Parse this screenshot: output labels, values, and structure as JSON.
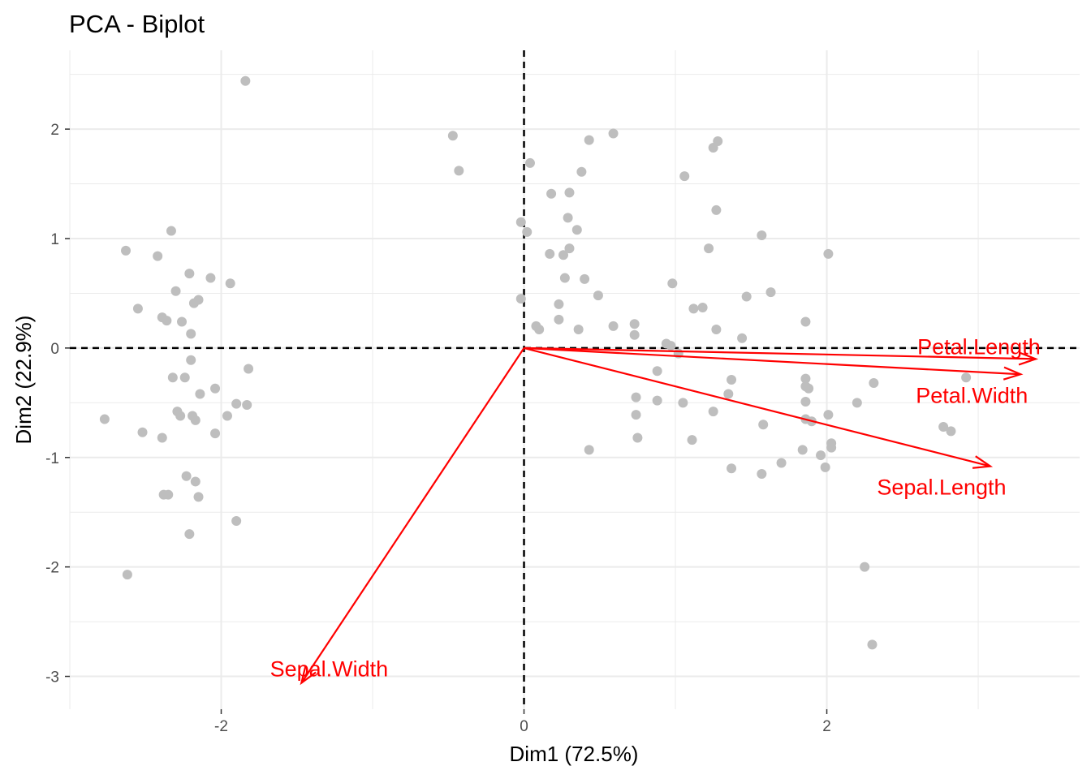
{
  "chart_data": {
    "type": "scatter",
    "title": "PCA - Biplot",
    "xlabel": "Dim1 (72.5%)",
    "ylabel": "Dim2 (22.9%)",
    "xlim": [
      -3.0,
      3.67
    ],
    "ylim": [
      -3.3,
      2.72
    ],
    "x_ticks": [
      -2,
      0,
      2
    ],
    "x_tick_labels": [
      "-2",
      "0",
      "2"
    ],
    "y_ticks": [
      -3,
      -2,
      -1,
      0,
      1,
      2
    ],
    "y_tick_labels": [
      "-3",
      "-2",
      "-1",
      "0",
      "1",
      "2"
    ],
    "grid": true,
    "legend": "none",
    "colors": {
      "points": "#bebebe",
      "variables": "#ff0000",
      "reference_lines": "#000000",
      "grid": "#ebebeb"
    },
    "individuals": [
      {
        "x": -1.84,
        "y": 2.44
      },
      {
        "x": -2.33,
        "y": 1.07
      },
      {
        "x": -2.63,
        "y": 0.89
      },
      {
        "x": -2.42,
        "y": 0.84
      },
      {
        "x": -2.21,
        "y": 0.68
      },
      {
        "x": -2.07,
        "y": 0.64
      },
      {
        "x": -2.3,
        "y": 0.52
      },
      {
        "x": -1.94,
        "y": 0.59
      },
      {
        "x": -2.15,
        "y": 0.44
      },
      {
        "x": -2.18,
        "y": 0.41
      },
      {
        "x": -2.55,
        "y": 0.36
      },
      {
        "x": -2.39,
        "y": 0.28
      },
      {
        "x": -2.36,
        "y": 0.25
      },
      {
        "x": -2.26,
        "y": 0.24
      },
      {
        "x": -2.2,
        "y": 0.13
      },
      {
        "x": -2.2,
        "y": -0.11
      },
      {
        "x": -1.82,
        "y": -0.19
      },
      {
        "x": -2.32,
        "y": -0.27
      },
      {
        "x": -2.24,
        "y": -0.27
      },
      {
        "x": -2.04,
        "y": -0.37
      },
      {
        "x": -2.14,
        "y": -0.42
      },
      {
        "x": -1.9,
        "y": -0.51
      },
      {
        "x": -1.83,
        "y": -0.52
      },
      {
        "x": -2.29,
        "y": -0.58
      },
      {
        "x": -2.27,
        "y": -0.62
      },
      {
        "x": -2.19,
        "y": -0.62
      },
      {
        "x": -1.96,
        "y": -0.62
      },
      {
        "x": -2.17,
        "y": -0.66
      },
      {
        "x": -2.77,
        "y": -0.65
      },
      {
        "x": -2.52,
        "y": -0.77
      },
      {
        "x": -2.04,
        "y": -0.78
      },
      {
        "x": -2.39,
        "y": -0.82
      },
      {
        "x": -2.23,
        "y": -1.17
      },
      {
        "x": -2.17,
        "y": -1.22
      },
      {
        "x": -2.38,
        "y": -1.34
      },
      {
        "x": -2.35,
        "y": -1.34
      },
      {
        "x": -2.15,
        "y": -1.36
      },
      {
        "x": -1.9,
        "y": -1.58
      },
      {
        "x": -2.21,
        "y": -1.7
      },
      {
        "x": -2.62,
        "y": -2.07
      },
      {
        "x": -0.47,
        "y": 1.94
      },
      {
        "x": -0.43,
        "y": 1.62
      },
      {
        "x": 0.04,
        "y": 1.69
      },
      {
        "x": 0.43,
        "y": 1.9
      },
      {
        "x": 0.59,
        "y": 1.96
      },
      {
        "x": 0.38,
        "y": 1.61
      },
      {
        "x": 1.06,
        "y": 1.57
      },
      {
        "x": 1.25,
        "y": 1.83
      },
      {
        "x": 1.28,
        "y": 1.89
      },
      {
        "x": 0.18,
        "y": 1.41
      },
      {
        "x": 0.3,
        "y": 1.42
      },
      {
        "x": -0.02,
        "y": 1.15
      },
      {
        "x": 0.02,
        "y": 1.06
      },
      {
        "x": 0.29,
        "y": 1.19
      },
      {
        "x": 0.35,
        "y": 1.08
      },
      {
        "x": 1.27,
        "y": 1.26
      },
      {
        "x": 1.57,
        "y": 1.03
      },
      {
        "x": 0.3,
        "y": 0.91
      },
      {
        "x": 1.22,
        "y": 0.91
      },
      {
        "x": 2.01,
        "y": 0.86
      },
      {
        "x": 0.17,
        "y": 0.86
      },
      {
        "x": 0.26,
        "y": 0.85
      },
      {
        "x": 0.27,
        "y": 0.64
      },
      {
        "x": 0.4,
        "y": 0.63
      },
      {
        "x": 0.98,
        "y": 0.59
      },
      {
        "x": 0.49,
        "y": 0.48
      },
      {
        "x": 1.47,
        "y": 0.47
      },
      {
        "x": 1.63,
        "y": 0.51
      },
      {
        "x": -0.02,
        "y": 0.45
      },
      {
        "x": 0.23,
        "y": 0.4
      },
      {
        "x": 1.12,
        "y": 0.36
      },
      {
        "x": 1.18,
        "y": 0.37
      },
      {
        "x": 0.23,
        "y": 0.26
      },
      {
        "x": 0.08,
        "y": 0.2
      },
      {
        "x": 0.1,
        "y": 0.17
      },
      {
        "x": 0.36,
        "y": 0.17
      },
      {
        "x": 0.59,
        "y": 0.2
      },
      {
        "x": 0.73,
        "y": 0.22
      },
      {
        "x": 0.73,
        "y": 0.12
      },
      {
        "x": 1.27,
        "y": 0.17
      },
      {
        "x": 1.44,
        "y": 0.09
      },
      {
        "x": 1.86,
        "y": 0.24
      },
      {
        "x": 0.94,
        "y": 0.04
      },
      {
        "x": 0.97,
        "y": 0.02
      },
      {
        "x": 1.02,
        "y": -0.05
      },
      {
        "x": 0.88,
        "y": -0.21
      },
      {
        "x": 1.37,
        "y": -0.29
      },
      {
        "x": 1.35,
        "y": -0.42
      },
      {
        "x": 1.86,
        "y": -0.28
      },
      {
        "x": 1.86,
        "y": -0.35
      },
      {
        "x": 1.88,
        "y": -0.37
      },
      {
        "x": 2.31,
        "y": -0.32
      },
      {
        "x": 2.92,
        "y": -0.27
      },
      {
        "x": 0.74,
        "y": -0.45
      },
      {
        "x": 0.88,
        "y": -0.48
      },
      {
        "x": 1.05,
        "y": -0.5
      },
      {
        "x": 1.86,
        "y": -0.49
      },
      {
        "x": 2.2,
        "y": -0.5
      },
      {
        "x": 0.74,
        "y": -0.61
      },
      {
        "x": 1.25,
        "y": -0.58
      },
      {
        "x": 1.58,
        "y": -0.7
      },
      {
        "x": 1.86,
        "y": -0.65
      },
      {
        "x": 1.9,
        "y": -0.67
      },
      {
        "x": 2.01,
        "y": -0.61
      },
      {
        "x": 2.77,
        "y": -0.72
      },
      {
        "x": 2.82,
        "y": -0.76
      },
      {
        "x": 0.75,
        "y": -0.82
      },
      {
        "x": 1.11,
        "y": -0.84
      },
      {
        "x": 0.43,
        "y": -0.93
      },
      {
        "x": 2.03,
        "y": -0.87
      },
      {
        "x": 2.03,
        "y": -0.91
      },
      {
        "x": 1.84,
        "y": -0.93
      },
      {
        "x": 1.96,
        "y": -0.98
      },
      {
        "x": 1.7,
        "y": -1.05
      },
      {
        "x": 1.37,
        "y": -1.1
      },
      {
        "x": 1.57,
        "y": -1.15
      },
      {
        "x": 1.99,
        "y": -1.09
      },
      {
        "x": 2.25,
        "y": -2.0
      },
      {
        "x": 2.3,
        "y": -2.71
      }
    ],
    "variables": [
      {
        "name": "Petal.Length",
        "x": 3.38,
        "y": -0.1
      },
      {
        "name": "Petal.Width",
        "x": 3.28,
        "y": -0.24
      },
      {
        "name": "Sepal.Length",
        "x": 3.08,
        "y": -1.08
      },
      {
        "name": "Sepal.Width",
        "x": -1.47,
        "y": -3.06
      }
    ]
  }
}
